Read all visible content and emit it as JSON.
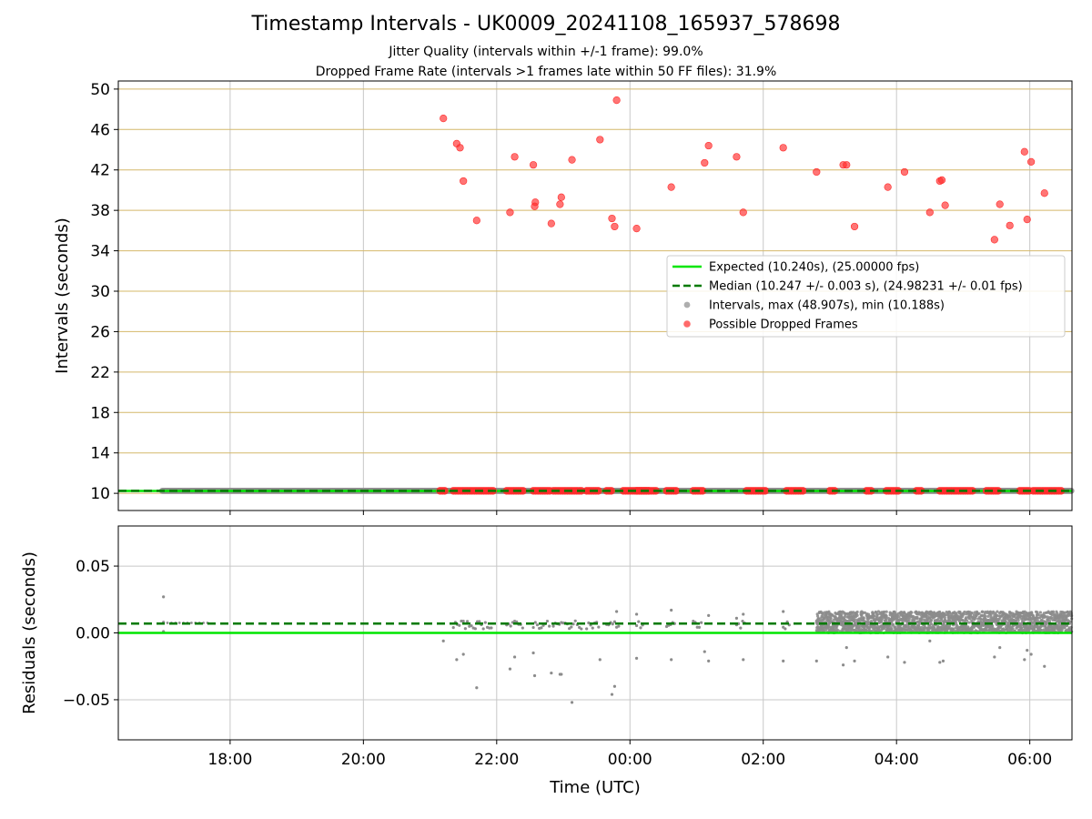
{
  "title": "Timestamp Intervals - UK0009_20241108_165937_578698",
  "subtitle_jitter": "Jitter Quality (intervals within +/-1 frame): 99.0%",
  "subtitle_dropped": "Dropped Frame Rate (intervals >1 frames late within 50 FF files): 31.9%",
  "colors": {
    "expected": "#00e600",
    "median": "#007a00",
    "interval": "#8c8c8c",
    "dropped": "#ff2b2b",
    "grid_top": "#d4b86a",
    "grid": "#c8c8c8"
  },
  "chart_data": [
    {
      "type": "scatter",
      "panel": "intervals",
      "xlabel": "",
      "ylabel": "Intervals (seconds)",
      "x_unit": "hours since 16:00 UTC (ticks labelled as clock time)",
      "xlim": [
        16.322,
        30.633
      ],
      "ylim": [
        8.3,
        50.8
      ],
      "yticks": [
        10,
        14,
        18,
        22,
        26,
        30,
        34,
        38,
        42,
        46,
        50
      ],
      "yticklabels": [
        "10",
        "14",
        "18",
        "22",
        "26",
        "30",
        "34",
        "38",
        "42",
        "46",
        "50"
      ],
      "xticks": [
        18,
        20,
        22,
        24,
        26,
        28,
        30
      ],
      "grid": true,
      "legend_position": "center-right",
      "legend": [
        {
          "label": "Expected (10.240s), (25.00000 fps)",
          "kind": "line-solid"
        },
        {
          "label": "Median (10.247 +/- 0.003 s), (24.98231 +/- 0.01 fps)",
          "kind": "line-dashed"
        },
        {
          "label": "Intervals, max (48.907s), min (10.188s)",
          "kind": "dot-gray"
        },
        {
          "label": "Possible Dropped Frames",
          "kind": "dot-red"
        }
      ],
      "expected": 10.24,
      "median": 10.247,
      "baseline_intervals_span": [
        16.98,
        30.633
      ],
      "dropped_baseline_ranges": [
        [
          21.15,
          21.25
        ],
        [
          21.35,
          21.95
        ],
        [
          22.15,
          22.4
        ],
        [
          22.55,
          22.8
        ],
        [
          22.85,
          23.3
        ],
        [
          23.35,
          23.55
        ],
        [
          23.65,
          23.75
        ],
        [
          23.9,
          24.4
        ],
        [
          24.1,
          24.3
        ],
        [
          24.55,
          24.7
        ],
        [
          24.95,
          25.1
        ],
        [
          25.75,
          26.05
        ],
        [
          26.35,
          26.6
        ],
        [
          27.0,
          27.1
        ],
        [
          27.55,
          27.65
        ],
        [
          27.85,
          28.05
        ],
        [
          28.3,
          28.4
        ],
        [
          28.65,
          29.15
        ],
        [
          29.35,
          29.55
        ],
        [
          29.85,
          30.0
        ],
        [
          30.05,
          30.5
        ]
      ],
      "dropped_series_name": "Possible Dropped Frames",
      "dropped_points": [
        {
          "x": 21.2,
          "y": 47.1
        },
        {
          "x": 21.4,
          "y": 44.6
        },
        {
          "x": 21.45,
          "y": 44.2
        },
        {
          "x": 21.5,
          "y": 40.9
        },
        {
          "x": 21.7,
          "y": 37.0
        },
        {
          "x": 22.2,
          "y": 37.8
        },
        {
          "x": 22.27,
          "y": 43.3
        },
        {
          "x": 22.55,
          "y": 42.5
        },
        {
          "x": 22.57,
          "y": 38.4
        },
        {
          "x": 22.58,
          "y": 38.8
        },
        {
          "x": 22.82,
          "y": 36.7
        },
        {
          "x": 22.95,
          "y": 38.6
        },
        {
          "x": 22.97,
          "y": 39.3
        },
        {
          "x": 23.13,
          "y": 43.0
        },
        {
          "x": 23.55,
          "y": 45.0
        },
        {
          "x": 23.73,
          "y": 37.2
        },
        {
          "x": 23.77,
          "y": 36.4
        },
        {
          "x": 23.8,
          "y": 48.9
        },
        {
          "x": 24.1,
          "y": 36.2
        },
        {
          "x": 24.62,
          "y": 40.3
        },
        {
          "x": 25.12,
          "y": 42.7
        },
        {
          "x": 25.18,
          "y": 44.4
        },
        {
          "x": 25.6,
          "y": 43.3
        },
        {
          "x": 25.7,
          "y": 37.8
        },
        {
          "x": 26.3,
          "y": 44.2
        },
        {
          "x": 26.8,
          "y": 41.8
        },
        {
          "x": 27.2,
          "y": 42.5
        },
        {
          "x": 27.25,
          "y": 42.5
        },
        {
          "x": 27.37,
          "y": 36.4
        },
        {
          "x": 27.87,
          "y": 40.3
        },
        {
          "x": 28.12,
          "y": 41.8
        },
        {
          "x": 28.5,
          "y": 37.8
        },
        {
          "x": 28.65,
          "y": 40.9
        },
        {
          "x": 28.68,
          "y": 41.0
        },
        {
          "x": 28.73,
          "y": 38.5
        },
        {
          "x": 29.47,
          "y": 35.1
        },
        {
          "x": 29.55,
          "y": 38.6
        },
        {
          "x": 29.7,
          "y": 36.5
        },
        {
          "x": 29.92,
          "y": 43.8
        },
        {
          "x": 29.96,
          "y": 37.1
        },
        {
          "x": 30.02,
          "y": 42.8
        },
        {
          "x": 30.22,
          "y": 39.7
        }
      ]
    },
    {
      "type": "scatter",
      "panel": "residuals",
      "xlabel": "Time (UTC)",
      "ylabel": "Residuals (seconds)",
      "x_unit": "hours since 16:00 UTC (ticks labelled as clock time)",
      "xlim": [
        16.322,
        30.633
      ],
      "ylim": [
        -0.08,
        0.08
      ],
      "yticks": [
        -0.05,
        0.0,
        0.05
      ],
      "yticklabels": [
        "−0.05",
        "0.00",
        "0.05"
      ],
      "xticks": [
        18,
        20,
        22,
        24,
        26,
        28,
        30
      ],
      "xticklabels": [
        "18:00",
        "20:00",
        "22:00",
        "00:00",
        "02:00",
        "04:00",
        "06:00"
      ],
      "grid": true,
      "expected": 0.0,
      "median": 0.007,
      "dense_band": {
        "x_start": 26.8,
        "x_end": 30.633,
        "y_min": 0.0,
        "y_max": 0.016
      },
      "residual_points": [
        {
          "x": 17.0,
          "y": 0.027
        },
        {
          "x": 17.0,
          "y": 0.008
        },
        {
          "x": 17.0,
          "y": 0.001
        },
        {
          "x": 21.2,
          "y": -0.006
        },
        {
          "x": 21.4,
          "y": -0.02
        },
        {
          "x": 21.5,
          "y": -0.016
        },
        {
          "x": 21.7,
          "y": -0.041
        },
        {
          "x": 22.2,
          "y": -0.027
        },
        {
          "x": 22.27,
          "y": -0.018
        },
        {
          "x": 22.55,
          "y": -0.015
        },
        {
          "x": 22.57,
          "y": -0.032
        },
        {
          "x": 22.82,
          "y": -0.03
        },
        {
          "x": 22.95,
          "y": -0.031
        },
        {
          "x": 22.97,
          "y": -0.031
        },
        {
          "x": 23.13,
          "y": -0.052
        },
        {
          "x": 23.55,
          "y": -0.02
        },
        {
          "x": 23.73,
          "y": -0.046
        },
        {
          "x": 23.77,
          "y": -0.04
        },
        {
          "x": 23.8,
          "y": 0.016
        },
        {
          "x": 24.1,
          "y": -0.019
        },
        {
          "x": 24.62,
          "y": -0.02
        },
        {
          "x": 25.12,
          "y": -0.014
        },
        {
          "x": 25.18,
          "y": -0.021
        },
        {
          "x": 25.7,
          "y": -0.02
        },
        {
          "x": 26.3,
          "y": -0.021
        },
        {
          "x": 26.8,
          "y": -0.021
        },
        {
          "x": 27.2,
          "y": -0.024
        },
        {
          "x": 27.25,
          "y": -0.011
        },
        {
          "x": 27.37,
          "y": -0.021
        },
        {
          "x": 27.87,
          "y": -0.018
        },
        {
          "x": 28.12,
          "y": -0.022
        },
        {
          "x": 28.5,
          "y": -0.006
        },
        {
          "x": 28.65,
          "y": -0.022
        },
        {
          "x": 28.7,
          "y": -0.021
        },
        {
          "x": 29.47,
          "y": -0.018
        },
        {
          "x": 29.55,
          "y": -0.011
        },
        {
          "x": 29.92,
          "y": -0.02
        },
        {
          "x": 29.96,
          "y": -0.013
        },
        {
          "x": 30.02,
          "y": -0.016
        },
        {
          "x": 30.22,
          "y": -0.025
        },
        {
          "x": 24.1,
          "y": 0.014
        },
        {
          "x": 24.62,
          "y": 0.017
        },
        {
          "x": 25.6,
          "y": 0.011
        },
        {
          "x": 25.7,
          "y": 0.014
        },
        {
          "x": 26.3,
          "y": 0.016
        },
        {
          "x": 25.18,
          "y": 0.013
        }
      ],
      "residual_clusters": [
        [
          21.35,
          21.95
        ],
        [
          22.15,
          22.4
        ],
        [
          22.55,
          22.8
        ],
        [
          22.85,
          23.3
        ],
        [
          23.35,
          23.55
        ],
        [
          23.65,
          23.85
        ],
        [
          24.1,
          24.2
        ],
        [
          24.55,
          24.7
        ],
        [
          24.95,
          25.1
        ],
        [
          25.6,
          25.75
        ],
        [
          26.3,
          26.4
        ]
      ]
    }
  ]
}
